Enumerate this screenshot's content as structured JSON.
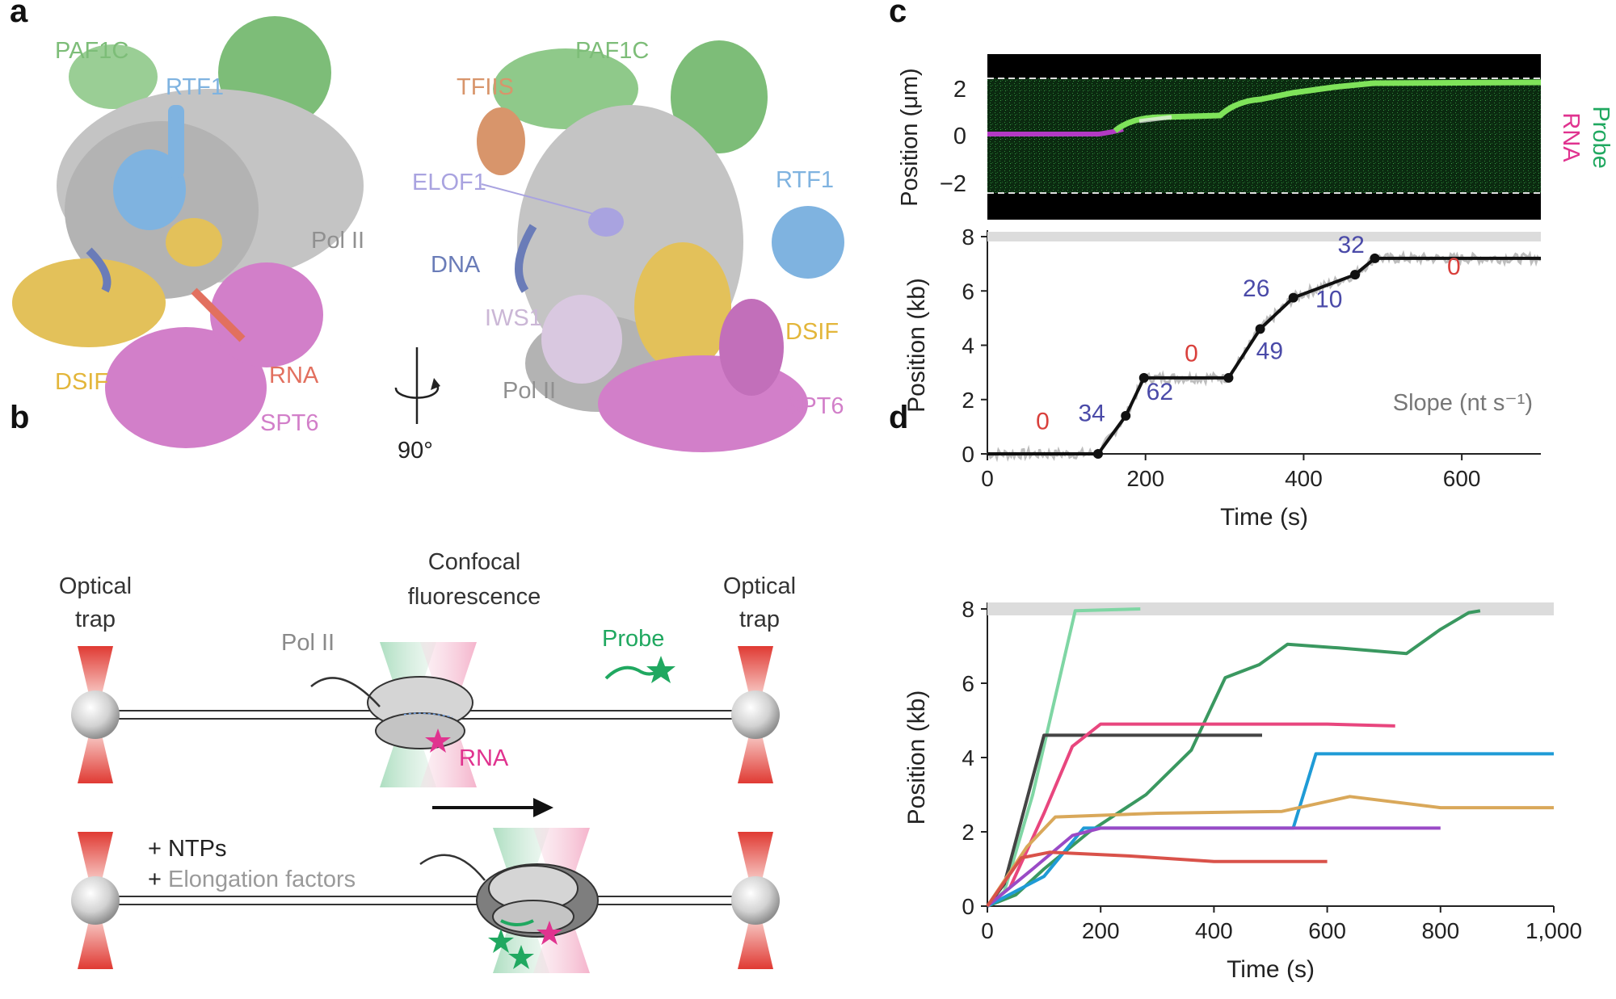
{
  "panels": {
    "a": "a",
    "b": "b",
    "c": "c",
    "d": "d"
  },
  "colors": {
    "paf1c": "#8fc98a",
    "rtf1": "#7fb3e0",
    "pol2": "#a0a0a0",
    "dsif": "#e3c15a",
    "spt6": "#d27fc9",
    "rna": "#e2705f",
    "tfiis": "#d8956b",
    "elof1": "#a9a3e0",
    "dna": "#6a7cb8",
    "iws1": "#d9c8e0",
    "probe": "#20a860",
    "rna_mag": "#e0338f",
    "slope_blue": "#4a4aa8",
    "slope_red": "#d9403c",
    "trap_red": "#e03a33"
  },
  "panel_a": {
    "left_labels": {
      "paf1c": "PAF1C",
      "rtf1": "RTF1",
      "pol2": "Pol II",
      "dsif": "DSIF",
      "rna": "RNA",
      "spt6": "SPT6"
    },
    "right_labels": {
      "paf1c": "PAF1C",
      "tfiis": "TFIIS",
      "elof1": "ELOF1",
      "dna": "DNA",
      "iws1": "IWS1",
      "pol2": "Pol II",
      "rtf1": "RTF1",
      "dsif": "DSIF",
      "spt6": "SPT6"
    },
    "rotation_label": "90°"
  },
  "panel_b": {
    "optical_trap_left": [
      "Optical",
      "trap"
    ],
    "optical_trap_right": [
      "Optical",
      "trap"
    ],
    "confocal": [
      "Confocal",
      "fluorescence"
    ],
    "pol2": "Pol II",
    "probe": "Probe",
    "rna": "RNA",
    "ntps": "+ NTPs",
    "elongation": "+ Elongation factors",
    "elongation_prefix": "+ ",
    "elongation_text": "Elongation factors"
  },
  "panel_c_kymo": {
    "ylabel": "Position (μm)",
    "yticks": [
      "2",
      "0",
      "−2"
    ],
    "side_probe": "Probe",
    "side_rna": "RNA"
  },
  "chart_data": [
    {
      "type": "line",
      "panel": "c",
      "xlabel": "Time (s)",
      "ylabel": "Position (kb)",
      "xlim": [
        0,
        700
      ],
      "ylim": [
        0,
        8
      ],
      "xticks": [
        "0",
        "200",
        "400",
        "600"
      ],
      "yticks": [
        "0",
        "2",
        "4",
        "6",
        "8"
      ],
      "annotation": "Slope (nt s⁻¹)",
      "fit_points": [
        [
          0,
          0
        ],
        [
          140,
          0
        ],
        [
          175,
          1.4
        ],
        [
          198,
          2.8
        ],
        [
          305,
          2.8
        ],
        [
          345,
          4.6
        ],
        [
          387,
          5.75
        ],
        [
          465,
          6.6
        ],
        [
          490,
          7.2
        ],
        [
          700,
          7.2
        ]
      ],
      "slopes": [
        {
          "value": "0",
          "color": "red",
          "x": 70,
          "y": 0.9
        },
        {
          "value": "34",
          "color": "blue",
          "x": 132,
          "y": 1.2
        },
        {
          "value": "62",
          "color": "blue",
          "x": 218,
          "y": 2.0
        },
        {
          "value": "0",
          "color": "red",
          "x": 258,
          "y": 3.4
        },
        {
          "value": "49",
          "color": "blue",
          "x": 357,
          "y": 3.5
        },
        {
          "value": "26",
          "color": "blue",
          "x": 340,
          "y": 5.8
        },
        {
          "value": "10",
          "color": "blue",
          "x": 432,
          "y": 5.4
        },
        {
          "value": "32",
          "color": "blue",
          "x": 460,
          "y": 7.4
        },
        {
          "value": "0",
          "color": "red",
          "x": 590,
          "y": 6.6
        }
      ]
    },
    {
      "type": "line",
      "panel": "d",
      "xlabel": "Time (s)",
      "ylabel": "Position (kb)",
      "xlim": [
        0,
        1000
      ],
      "ylim": [
        0,
        8
      ],
      "xticks": [
        "0",
        "200",
        "400",
        "600",
        "800",
        "1,000"
      ],
      "yticks": [
        "0",
        "2",
        "4",
        "6",
        "8"
      ],
      "series": [
        {
          "color": "#7fd6a4",
          "points": [
            [
              0,
              0
            ],
            [
              30,
              0.4
            ],
            [
              80,
              3.0
            ],
            [
              155,
              7.95
            ],
            [
              270,
              8.0
            ]
          ]
        },
        {
          "color": "#3a9860",
          "points": [
            [
              0,
              0
            ],
            [
              50,
              0.3
            ],
            [
              100,
              1.0
            ],
            [
              180,
              2.0
            ],
            [
              280,
              3.0
            ],
            [
              360,
              4.2
            ],
            [
              420,
              6.15
            ],
            [
              480,
              6.5
            ],
            [
              530,
              7.05
            ],
            [
              620,
              6.95
            ],
            [
              740,
              6.8
            ],
            [
              800,
              7.45
            ],
            [
              850,
              7.9
            ],
            [
              870,
              7.95
            ]
          ]
        },
        {
          "color": "#444444",
          "points": [
            [
              0,
              0
            ],
            [
              30,
              0.6
            ],
            [
              100,
              4.6
            ],
            [
              485,
              4.6
            ]
          ]
        },
        {
          "color": "#e8467e",
          "points": [
            [
              0,
              0
            ],
            [
              40,
              0.5
            ],
            [
              100,
              2.5
            ],
            [
              150,
              4.3
            ],
            [
              200,
              4.9
            ],
            [
              600,
              4.9
            ],
            [
              720,
              4.85
            ]
          ]
        },
        {
          "color": "#1f9bd6",
          "points": [
            [
              0,
              0
            ],
            [
              100,
              0.8
            ],
            [
              170,
              2.1
            ],
            [
              540,
              2.1
            ],
            [
              580,
              4.1
            ],
            [
              1000,
              4.1
            ]
          ]
        },
        {
          "color": "#d9a85a",
          "points": [
            [
              0,
              0
            ],
            [
              70,
              1.6
            ],
            [
              120,
              2.4
            ],
            [
              300,
              2.5
            ],
            [
              520,
              2.55
            ],
            [
              640,
              2.95
            ],
            [
              800,
              2.65
            ],
            [
              1000,
              2.65
            ]
          ]
        },
        {
          "color": "#9a4ac6",
          "points": [
            [
              0,
              0
            ],
            [
              80,
              1.0
            ],
            [
              150,
              1.9
            ],
            [
              200,
              2.1
            ],
            [
              800,
              2.1
            ]
          ]
        },
        {
          "color": "#d9524a",
          "points": [
            [
              0,
              0
            ],
            [
              60,
              1.3
            ],
            [
              110,
              1.45
            ],
            [
              250,
              1.35
            ],
            [
              400,
              1.2
            ],
            [
              600,
              1.2
            ]
          ]
        }
      ]
    }
  ]
}
